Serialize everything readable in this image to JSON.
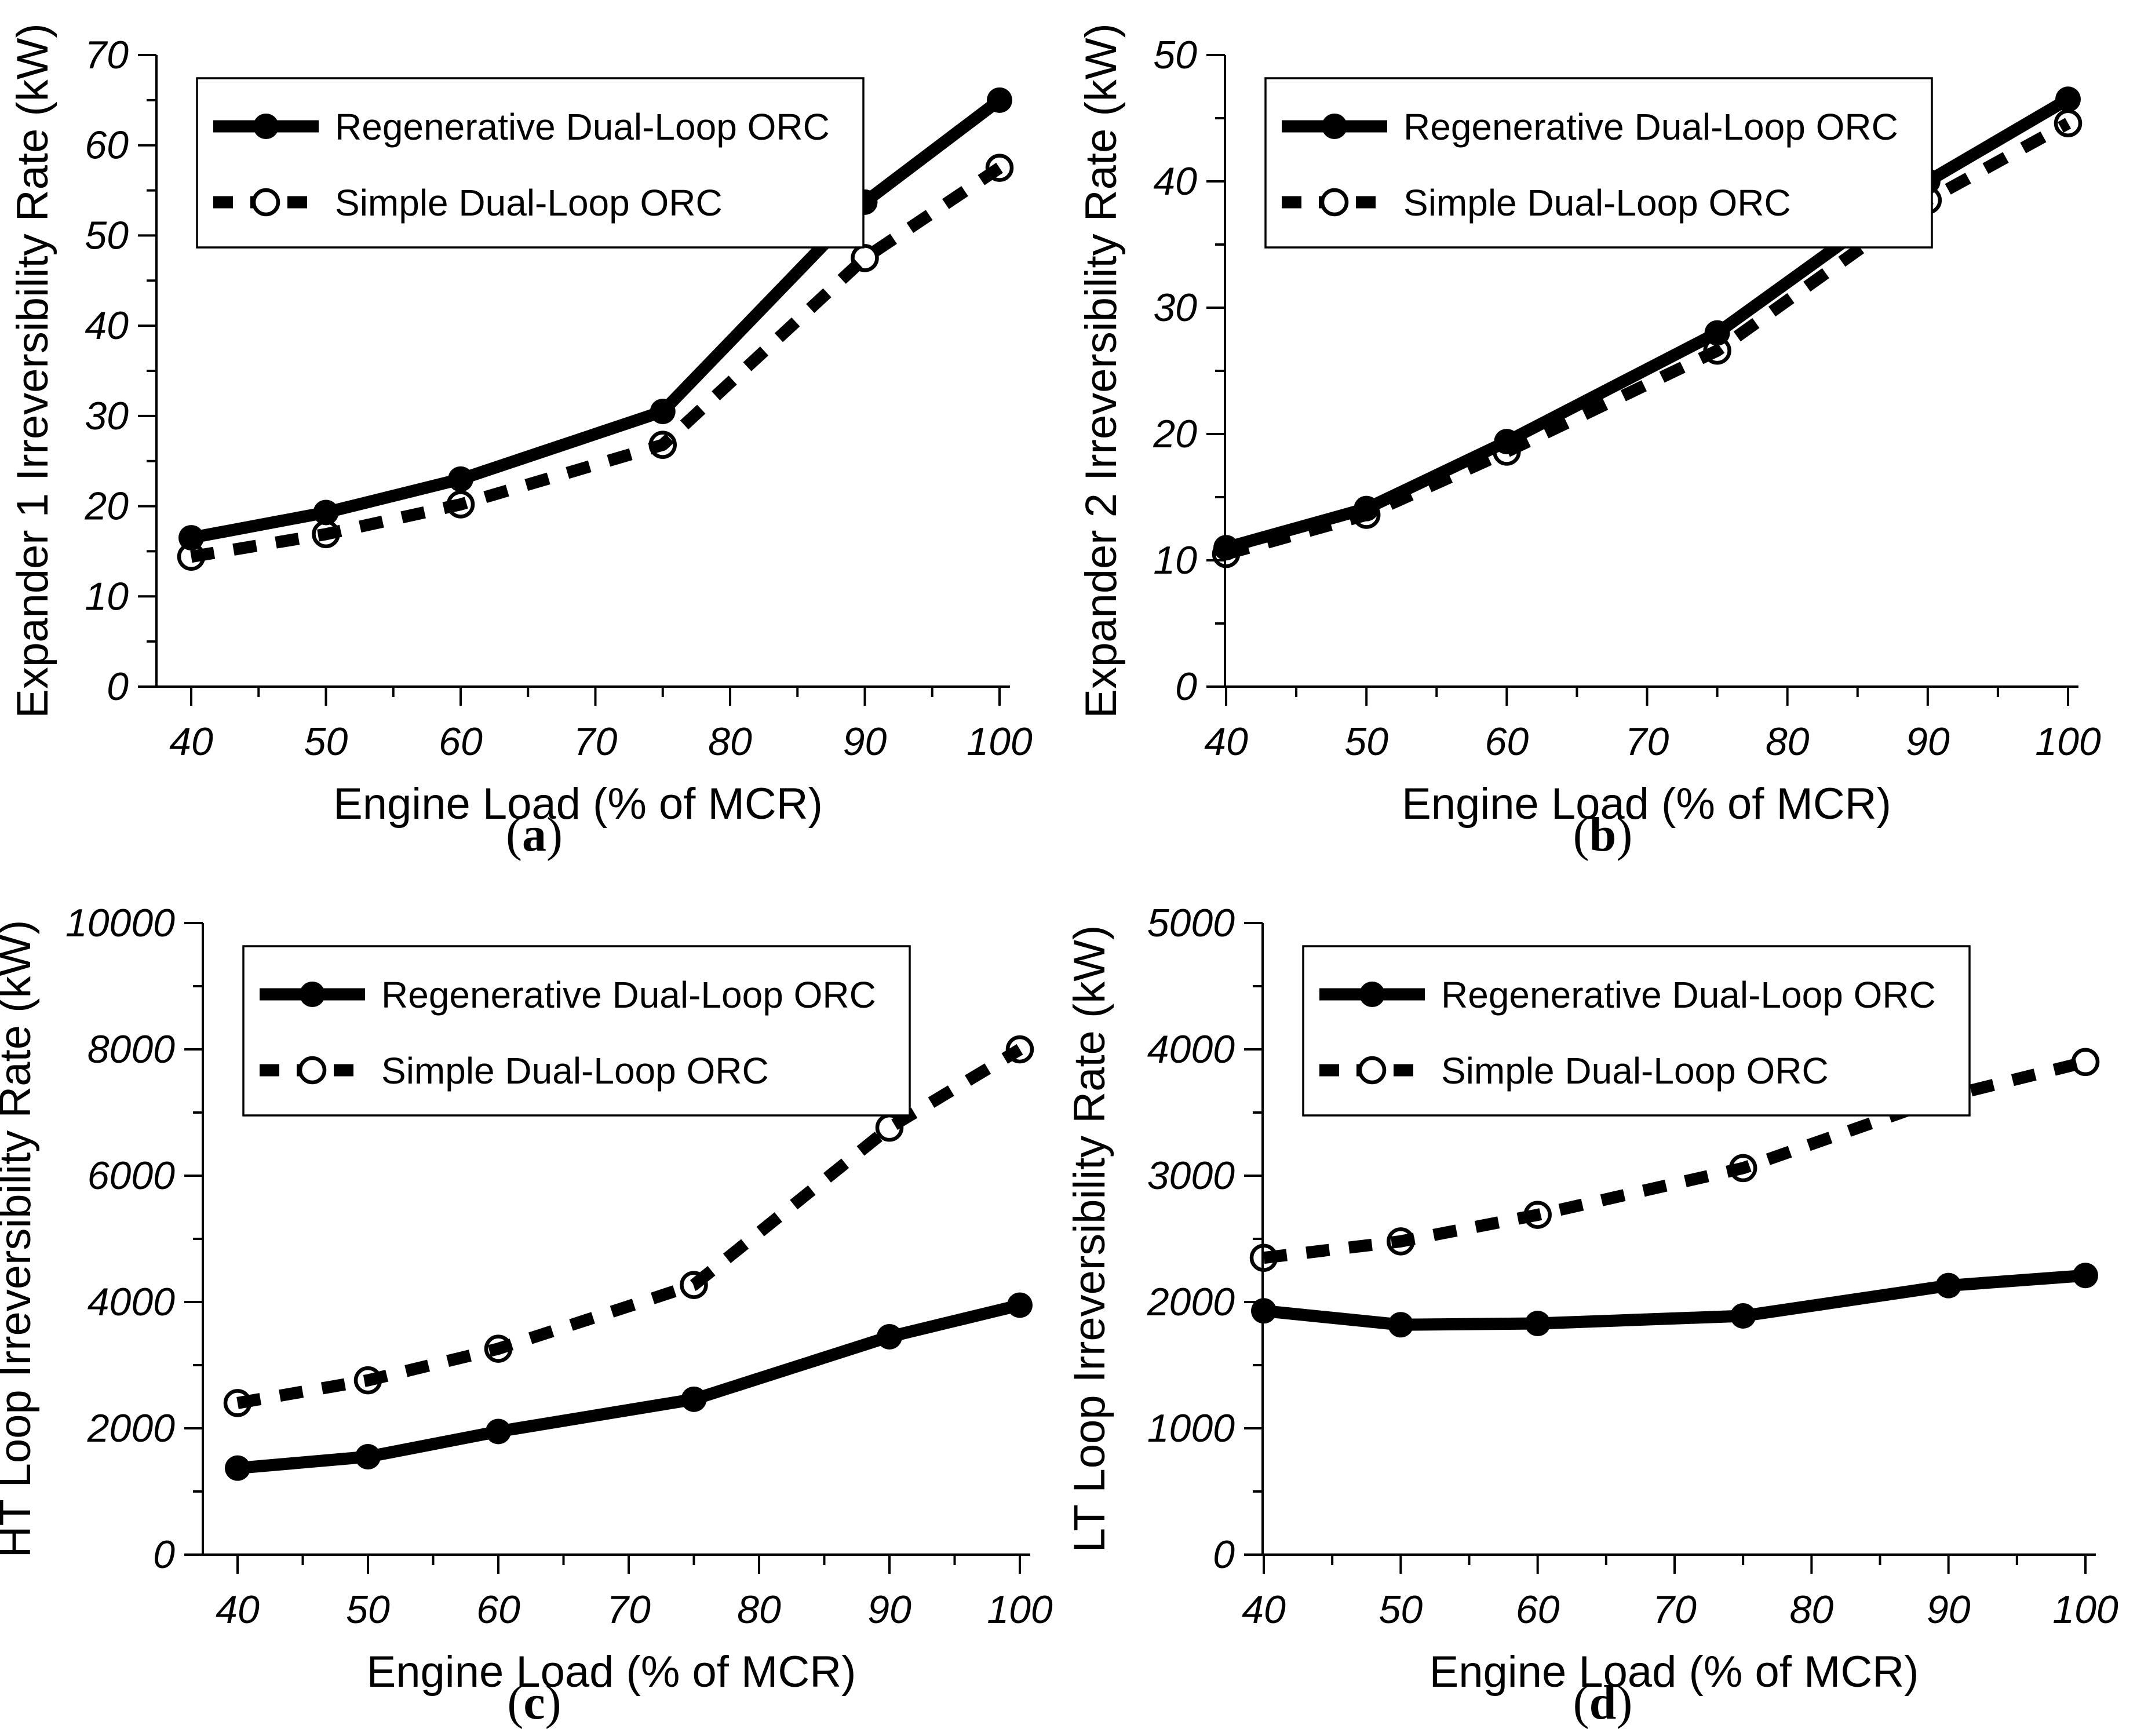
{
  "figure": {
    "background_color": "#ffffff",
    "line_color": "#000000",
    "xlabel": "Engine Load (% of MCR)",
    "legend_labels": [
      "Regenerative Dual-Loop ORC",
      "Simple Dual-Loop ORC"
    ],
    "legend_position": "top-left"
  },
  "chart_data": [
    {
      "id": "a",
      "type": "line",
      "caption": "(a)",
      "title": "",
      "xlabel": "Engine Load (% of MCR)",
      "ylabel": "Expander 1 Irreversibility Rate (kW)",
      "x": [
        40,
        50,
        60,
        75,
        90,
        100
      ],
      "xticks": [
        40,
        50,
        60,
        70,
        80,
        90,
        100
      ],
      "yticks": [
        0,
        10,
        20,
        30,
        40,
        50,
        60,
        70
      ],
      "xlim": [
        40,
        100
      ],
      "ylim": [
        0,
        70
      ],
      "grid": "off",
      "legend_position": "top-left",
      "series": [
        {
          "name": "Regenerative Dual-Loop ORC",
          "line_style": "solid",
          "marker": "filled-circle",
          "values": [
            16.5,
            19.3,
            23.0,
            30.5,
            53.7,
            65.0
          ]
        },
        {
          "name": "Simple Dual-Loop ORC",
          "line_style": "dashed",
          "marker": "open-circle",
          "values": [
            14.4,
            16.9,
            20.2,
            26.8,
            47.5,
            57.5
          ]
        }
      ]
    },
    {
      "id": "b",
      "type": "line",
      "caption": "(b)",
      "title": "",
      "xlabel": "Engine Load (% of MCR)",
      "ylabel": "Expander 2 Irreversibility Rate (kW)",
      "x": [
        40,
        50,
        60,
        75,
        90,
        100
      ],
      "xticks": [
        40,
        50,
        60,
        70,
        80,
        90,
        100
      ],
      "yticks": [
        0,
        10,
        20,
        30,
        40,
        50
      ],
      "xlim": [
        40,
        100
      ],
      "ylim": [
        0,
        50
      ],
      "grid": "off",
      "legend_position": "top-left",
      "series": [
        {
          "name": "Regenerative Dual-Loop ORC",
          "line_style": "solid",
          "marker": "filled-circle",
          "values": [
            11.0,
            14.1,
            19.4,
            28.0,
            40.0,
            46.5
          ]
        },
        {
          "name": "Simple Dual-Loop ORC",
          "line_style": "dashed",
          "marker": "open-circle",
          "values": [
            10.5,
            13.6,
            18.6,
            26.6,
            38.5,
            44.6
          ]
        }
      ]
    },
    {
      "id": "c",
      "type": "line",
      "caption": "(c)",
      "title": "",
      "xlabel": "Engine Load (% of MCR)",
      "ylabel": "HT Loop Irreversibility Rate (kW)",
      "x": [
        40,
        50,
        60,
        75,
        90,
        100
      ],
      "xticks": [
        40,
        50,
        60,
        70,
        80,
        90,
        100
      ],
      "yticks": [
        0,
        2000,
        4000,
        6000,
        8000,
        10000
      ],
      "xlim": [
        40,
        100
      ],
      "ylim": [
        0,
        10000
      ],
      "grid": "off",
      "legend_position": "top-left",
      "series": [
        {
          "name": "Regenerative Dual-Loop ORC",
          "line_style": "solid",
          "marker": "filled-circle",
          "values": [
            1370,
            1550,
            1950,
            2460,
            3450,
            3950
          ]
        },
        {
          "name": "Simple Dual-Loop ORC",
          "line_style": "dashed",
          "marker": "open-circle",
          "values": [
            2400,
            2760,
            3260,
            4270,
            6760,
            8000
          ]
        }
      ]
    },
    {
      "id": "d",
      "type": "line",
      "caption": "(d)",
      "title": "",
      "xlabel": "Engine Load (% of MCR)",
      "ylabel": "LT Loop Irreversibility Rate (kW)",
      "x": [
        40,
        50,
        60,
        75,
        90,
        100
      ],
      "xticks": [
        40,
        50,
        60,
        70,
        80,
        90,
        100
      ],
      "yticks": [
        0,
        1000,
        2000,
        3000,
        4000,
        5000
      ],
      "xlim": [
        40,
        100
      ],
      "ylim": [
        0,
        5000
      ],
      "grid": "off",
      "legend_position": "top-left",
      "series": [
        {
          "name": "Regenerative Dual-Loop ORC",
          "line_style": "solid",
          "marker": "filled-circle",
          "values": [
            1930,
            1820,
            1830,
            1890,
            2130,
            2210
          ]
        },
        {
          "name": "Simple Dual-Loop ORC",
          "line_style": "dashed",
          "marker": "open-circle",
          "values": [
            2350,
            2480,
            2690,
            3060,
            3630,
            3900
          ]
        }
      ]
    }
  ]
}
